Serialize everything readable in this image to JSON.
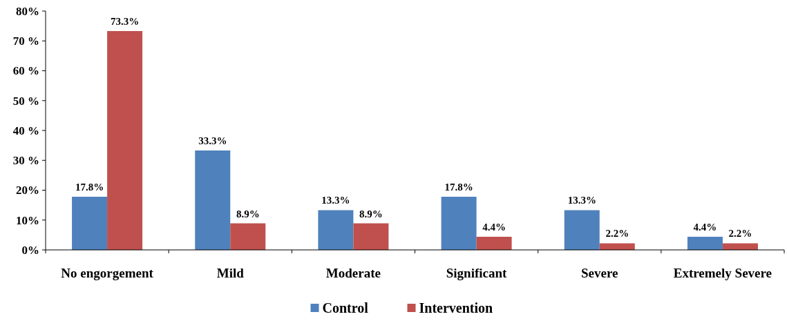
{
  "chart_data": {
    "type": "bar",
    "categories": [
      "No engorgement",
      "Mild",
      "Moderate",
      "Significant",
      "Severe",
      "Extremely Severe"
    ],
    "series": [
      {
        "name": "Control",
        "color": "#4f81bd",
        "values": [
          17.8,
          33.3,
          13.3,
          17.8,
          13.3,
          4.4
        ],
        "value_labels": [
          "17.8%",
          "33.3%",
          "13.3%",
          "17.8%",
          "13.3%",
          "4.4%"
        ]
      },
      {
        "name": "Intervention",
        "color": "#c0504d",
        "values": [
          73.3,
          8.9,
          8.9,
          4.4,
          2.2,
          2.2
        ],
        "value_labels": [
          "73.3%",
          "8.9%",
          "8.9%",
          "4.4%",
          "2.2%",
          "2.2%"
        ]
      }
    ],
    "ylim": [
      0,
      80
    ],
    "yticks": [
      {
        "value": 0,
        "label": "0%"
      },
      {
        "value": 10,
        "label": "10%"
      },
      {
        "value": 20,
        "label": "20%"
      },
      {
        "value": 30,
        "label": "30 %"
      },
      {
        "value": 40,
        "label": "40 %"
      },
      {
        "value": 50,
        "label": "50 %"
      },
      {
        "value": 60,
        "label": "60 %"
      },
      {
        "value": 70,
        "label": "70 %"
      },
      {
        "value": 80,
        "label": "80%"
      }
    ],
    "grid": false,
    "legend": "bottom"
  }
}
